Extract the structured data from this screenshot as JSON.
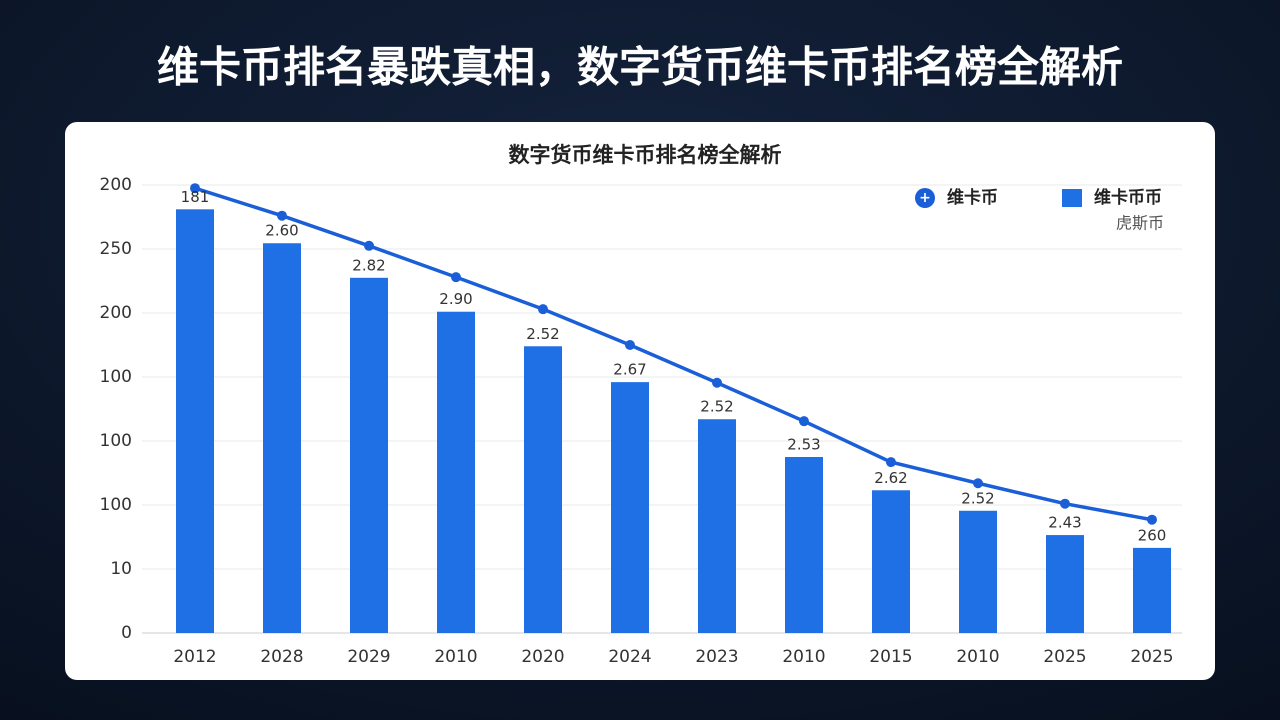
{
  "header": {
    "title": "维卡币排名暴跌真相，数字货币维卡币排名榜全解析"
  },
  "chart_data": {
    "type": "combo",
    "title": "数字货币维卡币排名榜全解析",
    "categories": [
      "2012",
      "2028",
      "2029",
      "2010",
      "2020",
      "2024",
      "2023",
      "2010",
      "2015",
      "2010",
      "2025",
      "2025"
    ],
    "series": [
      {
        "name": "维卡币币",
        "type": "bar",
        "color": "#1f6fe5",
        "values": [
          6.62,
          6.09,
          5.55,
          5.02,
          4.48,
          3.92,
          3.34,
          2.75,
          2.23,
          1.91,
          1.53,
          1.33
        ]
      },
      {
        "name": "维卡币",
        "type": "line",
        "color": "#1a5fd8",
        "values": [
          6.95,
          6.52,
          6.05,
          5.56,
          5.06,
          4.5,
          3.91,
          3.31,
          2.67,
          2.34,
          2.02,
          1.77
        ]
      }
    ],
    "annotations": [
      "181",
      "2.60",
      "2.82",
      "2.90",
      "2.52",
      "2.67",
      "2.52",
      "2.53",
      "2.62",
      "2.52",
      "2.43",
      "260"
    ],
    "legend_note": "虎斯币",
    "ylim": [
      0,
      7
    ],
    "yticks": [
      0,
      {
        "value": 1,
        "label": "10"
      },
      {
        "value": 2,
        "label": "100"
      },
      {
        "value": 3,
        "label": "100"
      },
      {
        "value": 4,
        "label": "100"
      },
      {
        "value": 5,
        "label": "200"
      },
      {
        "value": 6,
        "label": "250"
      },
      {
        "value": 7,
        "label": "200"
      }
    ],
    "grid": true,
    "legend": "top-right"
  }
}
